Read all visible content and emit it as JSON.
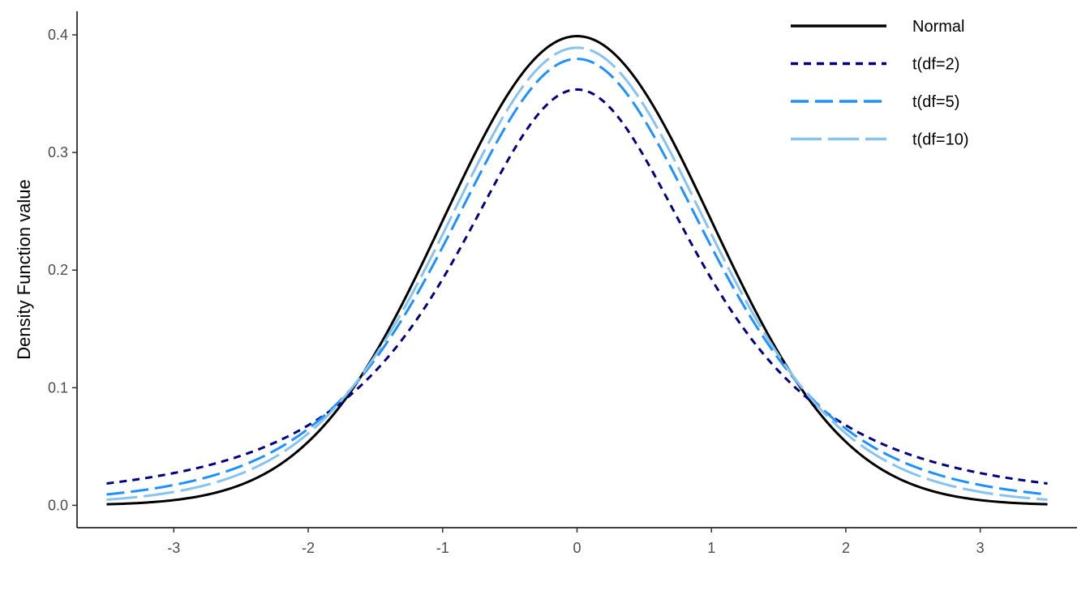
{
  "chart_data": {
    "type": "line",
    "title": "",
    "xlabel": "",
    "ylabel": "Density Function value",
    "xlim": [
      -3.72,
      3.72
    ],
    "ylim": [
      -0.019,
      0.42
    ],
    "x_range": [
      -3.5,
      3.5
    ],
    "x_ticks": [
      -3,
      -2,
      -1,
      0,
      1,
      2,
      3
    ],
    "x_tick_labels": [
      "-3",
      "-2",
      "-1",
      "0",
      "1",
      "2",
      "3"
    ],
    "y_ticks": [
      0.0,
      0.1,
      0.2,
      0.3,
      0.4
    ],
    "y_tick_labels": [
      "0.0",
      "0.1",
      "0.2",
      "0.3",
      "0.4"
    ],
    "grid": false,
    "legend_position": "top-right",
    "series": [
      {
        "name": "Normal",
        "color": "#000000",
        "dash": "solid",
        "x": [
          -3.5,
          -3.0,
          -2.5,
          -2.0,
          -1.5,
          -1.0,
          -0.5,
          0.0,
          0.5,
          1.0,
          1.5,
          2.0,
          2.5,
          3.0,
          3.5
        ],
        "y": [
          0.0009,
          0.0044,
          0.0175,
          0.054,
          0.1295,
          0.242,
          0.3521,
          0.3989,
          0.3521,
          0.242,
          0.1295,
          0.054,
          0.0175,
          0.0044,
          0.0009
        ]
      },
      {
        "name": "t(df=2)",
        "color": "#000080",
        "dash": "short",
        "x": [
          -3.5,
          -3.0,
          -2.5,
          -2.0,
          -1.5,
          -1.0,
          -0.5,
          0.0,
          0.5,
          1.0,
          1.5,
          2.0,
          2.5,
          3.0,
          3.5
        ],
        "y": [
          0.0196,
          0.0274,
          0.0403,
          0.068,
          0.1089,
          0.1925,
          0.2962,
          0.3536,
          0.2962,
          0.1925,
          0.1089,
          0.068,
          0.0403,
          0.0274,
          0.0196
        ]
      },
      {
        "name": "t(df=5)",
        "color": "#1e90ff",
        "dash": "long",
        "x": [
          -3.5,
          -3.0,
          -2.5,
          -2.0,
          -1.5,
          -1.0,
          -0.5,
          0.0,
          0.5,
          1.0,
          1.5,
          2.0,
          2.5,
          3.0,
          3.5
        ],
        "y": [
          0.0094,
          0.0173,
          0.0332,
          0.0651,
          0.1245,
          0.2197,
          0.3279,
          0.3796,
          0.3279,
          0.2197,
          0.1245,
          0.0651,
          0.0332,
          0.0173,
          0.0094
        ]
      },
      {
        "name": "t(df=10)",
        "color": "#87c3f0",
        "dash": "longer",
        "x": [
          -3.5,
          -3.0,
          -2.5,
          -2.0,
          -1.5,
          -1.0,
          -0.5,
          0.0,
          0.5,
          1.0,
          1.5,
          2.0,
          2.5,
          3.0,
          3.5
        ],
        "y": [
          0.0048,
          0.0114,
          0.0269,
          0.0611,
          0.1274,
          0.2304,
          0.3402,
          0.3891,
          0.3402,
          0.2304,
          0.1274,
          0.0611,
          0.0269,
          0.0114,
          0.0048
        ]
      }
    ]
  }
}
